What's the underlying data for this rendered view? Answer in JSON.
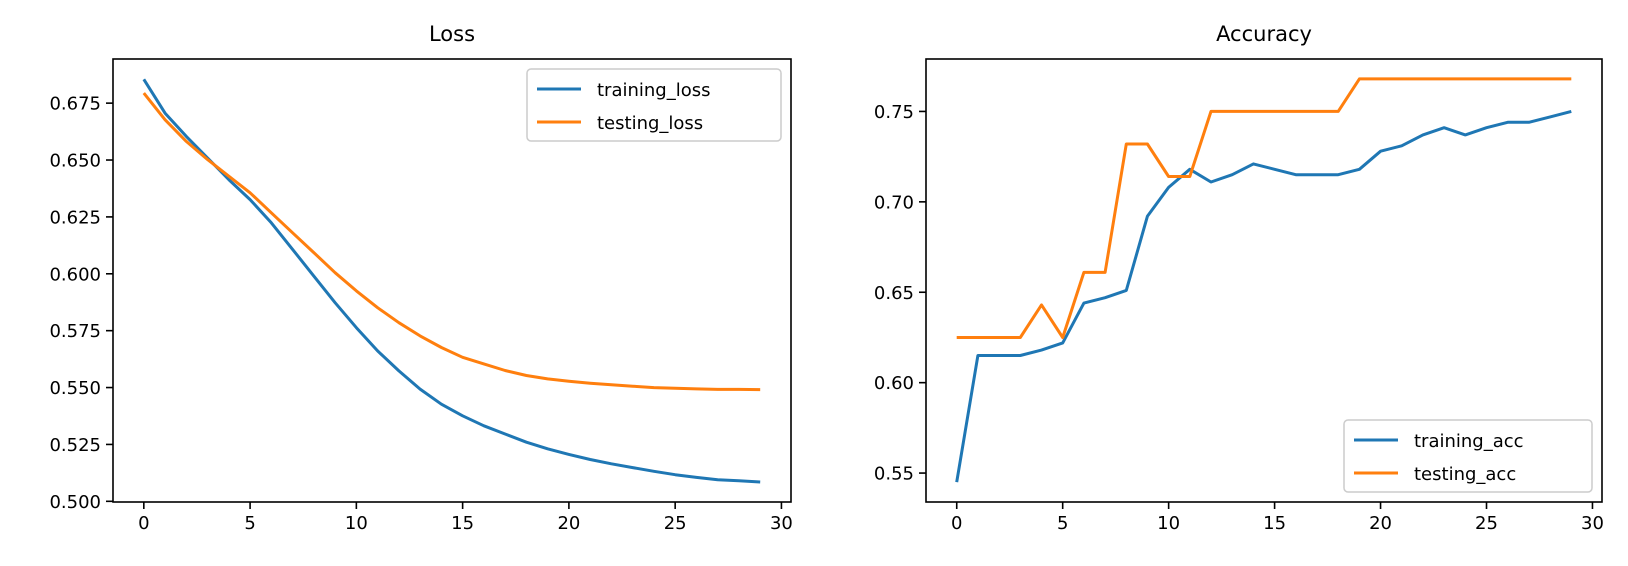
{
  "colors": {
    "training": "#1f77b4",
    "testing": "#ff7f0e"
  },
  "chart_data": [
    {
      "type": "line",
      "title": "Loss",
      "xlabel": "",
      "ylabel": "",
      "xlim": [
        -1.45,
        30.45
      ],
      "ylim": [
        0.4997,
        0.6944
      ],
      "xticks": [
        0,
        5,
        10,
        15,
        20,
        25,
        30
      ],
      "xtick_labels": [
        "0",
        "5",
        "10",
        "15",
        "20",
        "25",
        "30"
      ],
      "yticks": [
        0.5,
        0.525,
        0.55,
        0.575,
        0.6,
        0.625,
        0.65,
        0.675
      ],
      "ytick_labels": [
        "0.500",
        "0.525",
        "0.550",
        "0.575",
        "0.600",
        "0.625",
        "0.650",
        "0.675"
      ],
      "legend_position": "upper-right",
      "grid": false,
      "x": [
        0,
        1,
        2,
        3,
        4,
        5,
        6,
        7,
        8,
        9,
        10,
        11,
        12,
        13,
        14,
        15,
        16,
        17,
        18,
        19,
        20,
        21,
        22,
        23,
        24,
        25,
        26,
        27,
        28,
        29
      ],
      "series": [
        {
          "name": "training_loss",
          "color_key": "training",
          "values": [
            0.6855,
            0.6706,
            0.6604,
            0.6509,
            0.6414,
            0.6326,
            0.6224,
            0.6107,
            0.599,
            0.5873,
            0.5763,
            0.5661,
            0.5573,
            0.5493,
            0.5427,
            0.5376,
            0.5332,
            0.5296,
            0.526,
            0.5231,
            0.5206,
            0.5184,
            0.5165,
            0.5148,
            0.5132,
            0.5117,
            0.5105,
            0.5095,
            0.509,
            0.5085
          ]
        },
        {
          "name": "testing_loss",
          "color_key": "testing",
          "values": [
            0.6794,
            0.6677,
            0.6582,
            0.6502,
            0.6429,
            0.6356,
            0.6268,
            0.618,
            0.6093,
            0.6005,
            0.5925,
            0.5851,
            0.5785,
            0.5727,
            0.5676,
            0.5633,
            0.5604,
            0.5575,
            0.5553,
            0.5538,
            0.5528,
            0.5519,
            0.5512,
            0.5506,
            0.55,
            0.5497,
            0.5494,
            0.5492,
            0.5492,
            0.5491
          ]
        }
      ]
    },
    {
      "type": "line",
      "title": "Accuracy",
      "xlabel": "",
      "ylabel": "",
      "xlim": [
        -1.45,
        30.45
      ],
      "ylim": [
        0.534,
        0.779
      ],
      "xticks": [
        0,
        5,
        10,
        15,
        20,
        25,
        30
      ],
      "xtick_labels": [
        "0",
        "5",
        "10",
        "15",
        "20",
        "25",
        "30"
      ],
      "yticks": [
        0.55,
        0.6,
        0.65,
        0.7,
        0.75
      ],
      "ytick_labels": [
        "0.55",
        "0.60",
        "0.65",
        "0.70",
        "0.75"
      ],
      "legend_position": "lower-right",
      "grid": false,
      "x": [
        0,
        1,
        2,
        3,
        4,
        5,
        6,
        7,
        8,
        9,
        10,
        11,
        12,
        13,
        14,
        15,
        16,
        17,
        18,
        19,
        20,
        21,
        22,
        23,
        24,
        25,
        26,
        27,
        28,
        29
      ],
      "series": [
        {
          "name": "training_acc",
          "color_key": "training",
          "values": [
            0.545,
            0.615,
            0.615,
            0.615,
            0.618,
            0.622,
            0.644,
            0.647,
            0.651,
            0.692,
            0.708,
            0.718,
            0.711,
            0.715,
            0.721,
            0.718,
            0.715,
            0.715,
            0.715,
            0.718,
            0.728,
            0.731,
            0.737,
            0.741,
            0.737,
            0.741,
            0.744,
            0.744,
            0.747,
            0.75
          ]
        },
        {
          "name": "testing_acc",
          "color_key": "testing",
          "values": [
            0.625,
            0.625,
            0.625,
            0.625,
            0.643,
            0.625,
            0.661,
            0.661,
            0.732,
            0.732,
            0.714,
            0.714,
            0.75,
            0.75,
            0.75,
            0.75,
            0.75,
            0.75,
            0.75,
            0.768,
            0.768,
            0.768,
            0.768,
            0.768,
            0.768,
            0.768,
            0.768,
            0.768,
            0.768,
            0.768
          ]
        }
      ]
    }
  ]
}
